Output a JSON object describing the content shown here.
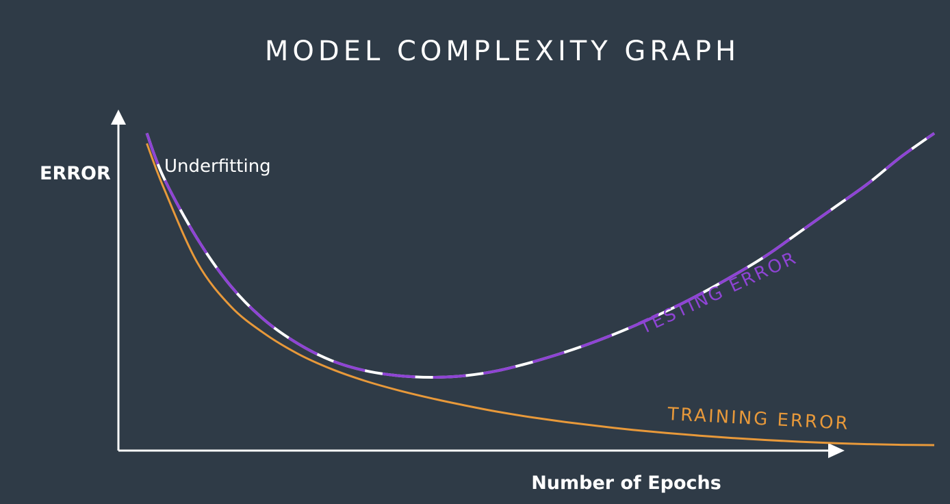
{
  "chart_data": {
    "type": "line",
    "title": "MODEL COMPLEXITY GRAPH",
    "xlabel": "Number of Epochs",
    "ylabel": "ERROR",
    "annotation": "Underfitting",
    "grid": false,
    "x": [
      0.5,
      1,
      2,
      3,
      4,
      5,
      6,
      7,
      8,
      9,
      10,
      11,
      12,
      13,
      14,
      15,
      16,
      17,
      18,
      19,
      20,
      21,
      22,
      23,
      24
    ],
    "series": [
      {
        "name": "TESTING ERROR",
        "color": "#8e44d4",
        "dash_color": "#ffffff",
        "values": [
          9.3,
          8.0,
          6.2,
          4.8,
          3.8,
          3.1,
          2.6,
          2.3,
          2.15,
          2.1,
          2.15,
          2.3,
          2.55,
          2.85,
          3.2,
          3.6,
          4.05,
          4.55,
          5.1,
          5.7,
          6.4,
          7.1,
          7.8,
          8.6,
          9.3
        ]
      },
      {
        "name": "TRAINING ERROR",
        "color": "#e8993a",
        "values": [
          9.0,
          7.7,
          5.5,
          4.2,
          3.4,
          2.8,
          2.35,
          2.0,
          1.72,
          1.48,
          1.27,
          1.08,
          0.92,
          0.78,
          0.66,
          0.55,
          0.46,
          0.38,
          0.31,
          0.25,
          0.2,
          0.16,
          0.13,
          0.11,
          0.1
        ]
      }
    ],
    "xlim": [
      0,
      24
    ],
    "ylim": [
      0,
      10
    ]
  }
}
